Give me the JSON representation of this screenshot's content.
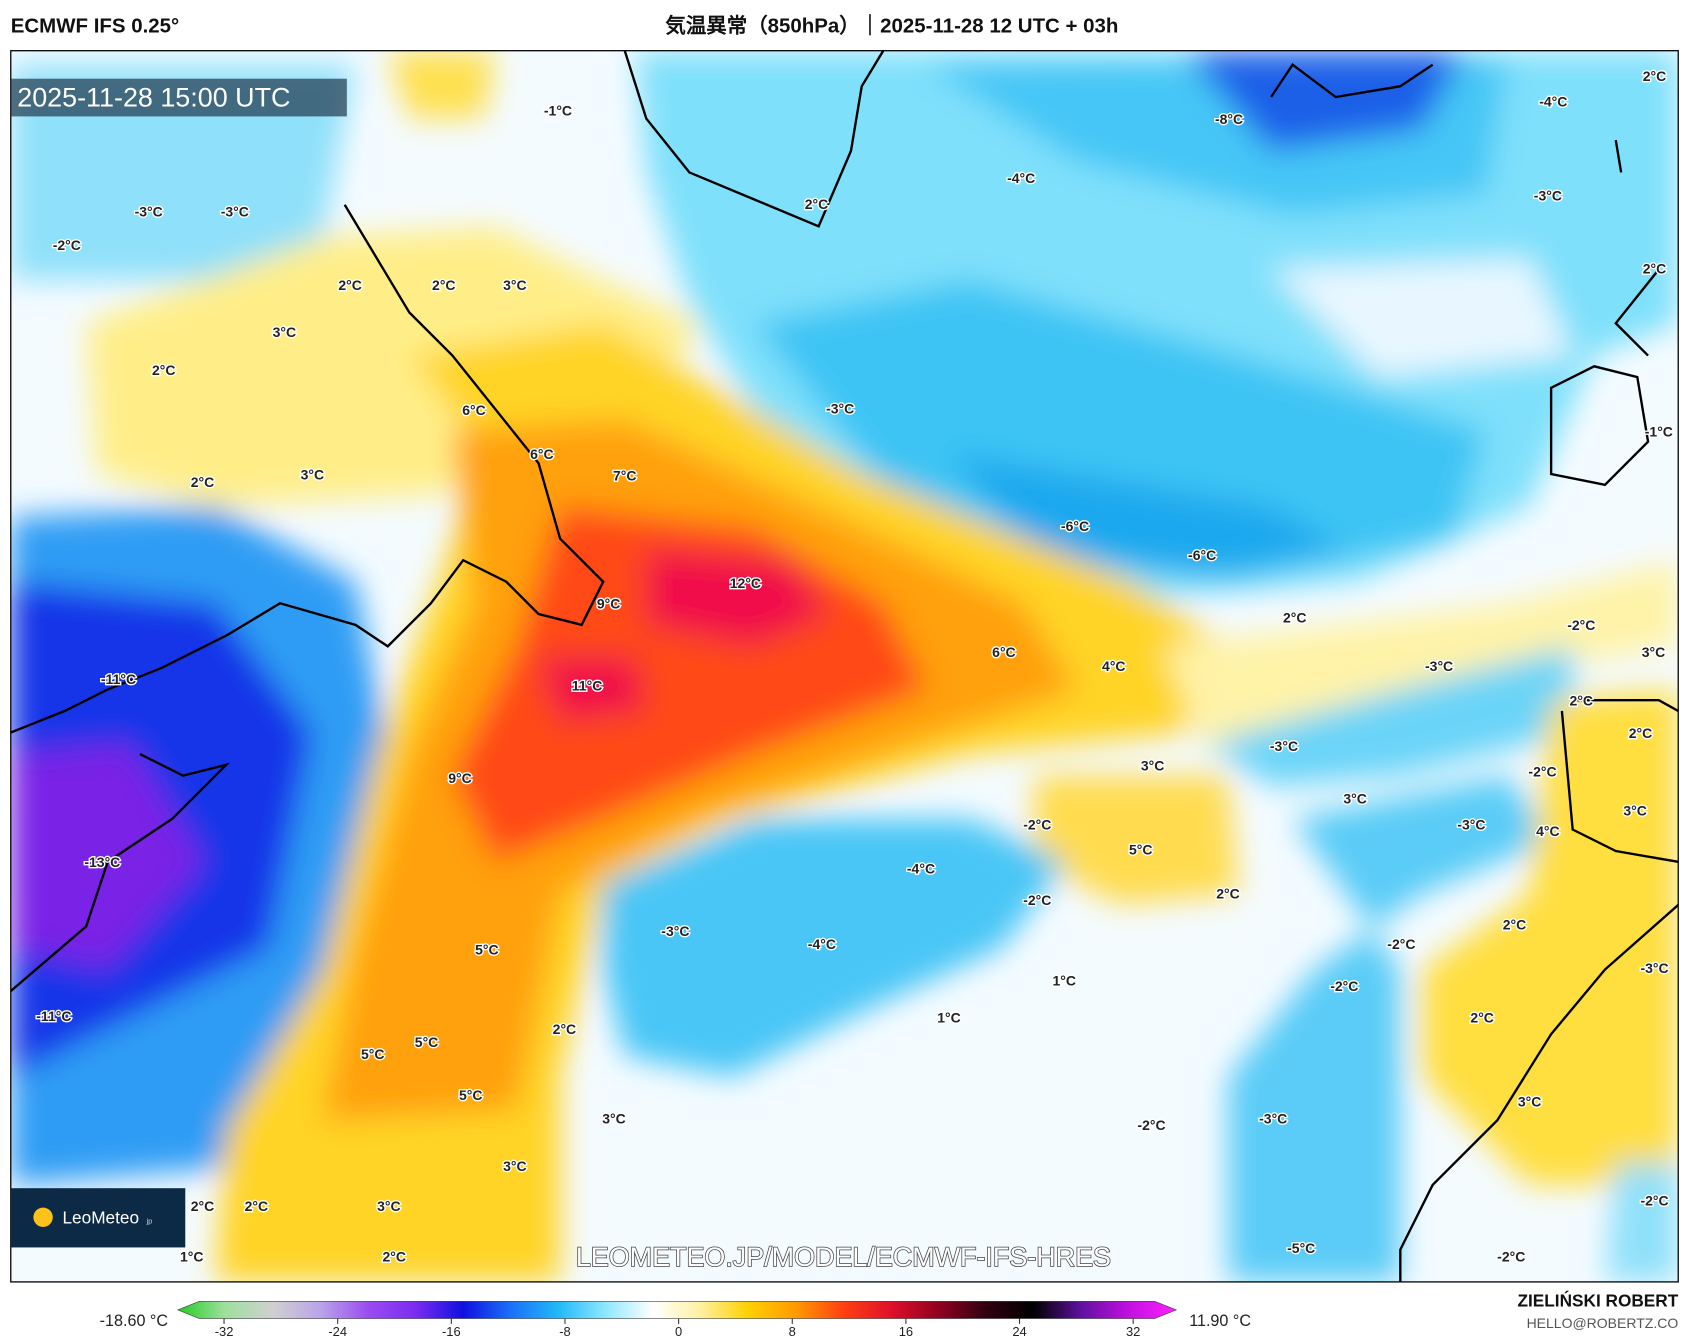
{
  "header": {
    "model": "ECMWF IFS 0.25°",
    "title": "気温異常（850hPa）｜2025-11-28 12 UTC + 03h"
  },
  "map": {
    "valid_time": "2025-11-28 15:00 UTC",
    "watermark": "LEOMETEO.JP/MODEL/ECMWF-IFS-HRES",
    "logo": "LeoMeteo",
    "logo_suffix": "jp",
    "contour_labels": [
      "-1°C",
      "-3°C",
      "-3°C",
      "-2°C",
      "2°C",
      "2°C",
      "3°C",
      "3°C",
      "2°C",
      "6°C",
      "6°C",
      "7°C",
      "2°C",
      "3°C",
      "12°C",
      "9°C",
      "11°C",
      "-11°C",
      "9°C",
      "-13°C",
      "6°C",
      "4°C",
      "2°C",
      "-2°C",
      "3°C",
      "-3°C",
      "2°C",
      "2°C",
      "-3°C",
      "3°C",
      "-2°C",
      "3°C",
      "3°C",
      "4°C",
      "-3°C",
      "-2°C",
      "5°C",
      "-4°C",
      "-2°C",
      "2°C",
      "-3°C",
      "-4°C",
      "5°C",
      "2°C",
      "-2°C",
      "-3°C",
      "1°C",
      "-2°C",
      "-11°C",
      "1°C",
      "2°C",
      "2°C",
      "5°C",
      "5°C",
      "5°C",
      "3°C",
      "3°C",
      "-2°C",
      "-3°C",
      "3°C",
      "2°C",
      "2°C",
      "3°C",
      "-2°C",
      "1°C",
      "2°C",
      "-5°C",
      "-2°C",
      "-8°C",
      "-4°C",
      "-4°C",
      "-3°C",
      "2°C",
      "2°C",
      "-3°C",
      "-1°C",
      "-6°C",
      "-6°C",
      "2°C"
    ]
  },
  "colorbar": {
    "min_value": "-18.60 °C",
    "max_value": "11.90 °C",
    "ticks": [
      "-32",
      "-24",
      "-16",
      "-8",
      "0",
      "8",
      "16",
      "24",
      "32"
    ],
    "range": [
      -32,
      32
    ],
    "colors": [
      "#22cc22",
      "#9ee09e",
      "#d0d0d0",
      "#b9a4e8",
      "#9b4cf0",
      "#7a2cf0",
      "#1010e0",
      "#1a70f8",
      "#22b8f8",
      "#8ee8ff",
      "#ffffff",
      "#fff0a0",
      "#ffd000",
      "#ff9a00",
      "#ff4010",
      "#e0102a",
      "#900020",
      "#300010",
      "#000000",
      "#6010a0",
      "#c010e0",
      "#ff20ff"
    ]
  },
  "credit": {
    "author": "ZIELIŃSKI ROBERT",
    "email": "HELLO@ROBERTZ.CO"
  }
}
